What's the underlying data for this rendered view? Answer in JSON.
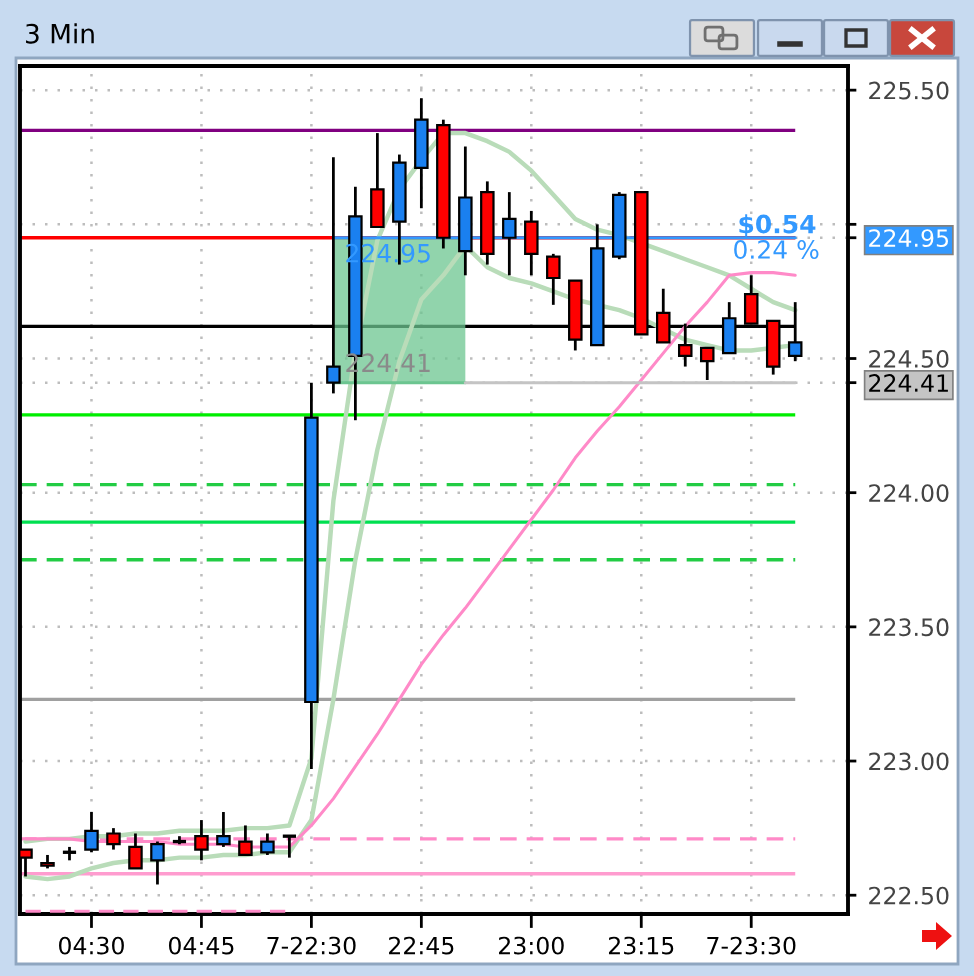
{
  "chart_data": {
    "type": "candlestick",
    "title": "3 Min",
    "categories": [
      null,
      null,
      null,
      "04:30",
      null,
      null,
      null,
      null,
      "04:45",
      null,
      null,
      null,
      null,
      "7-22:30",
      null,
      null,
      null,
      null,
      "22:45",
      null,
      null,
      null,
      null,
      "23:00",
      null,
      null,
      null,
      null,
      "23:15",
      null,
      null,
      null,
      null,
      "7-23:30",
      null,
      null
    ],
    "ohlc": [
      [
        222.67,
        222.67,
        222.57,
        222.64
      ],
      [
        222.62,
        222.65,
        222.6,
        222.61
      ],
      [
        222.66,
        222.68,
        222.63,
        222.66
      ],
      [
        222.67,
        222.81,
        222.66,
        222.74
      ],
      [
        222.73,
        222.75,
        222.67,
        222.69
      ],
      [
        222.68,
        222.73,
        222.6,
        222.6
      ],
      [
        222.63,
        222.7,
        222.54,
        222.69
      ],
      [
        222.7,
        222.72,
        222.69,
        222.7
      ],
      [
        222.72,
        222.78,
        222.63,
        222.67
      ],
      [
        222.69,
        222.81,
        222.68,
        222.72
      ],
      [
        222.7,
        222.76,
        222.65,
        222.65
      ],
      [
        222.66,
        222.73,
        222.65,
        222.7
      ],
      [
        222.72,
        222.72,
        222.64,
        222.72
      ],
      [
        223.22,
        224.41,
        222.97,
        224.28
      ],
      [
        224.41,
        225.25,
        224.37,
        224.47
      ],
      [
        224.51,
        225.14,
        224.27,
        225.03
      ],
      [
        225.13,
        225.34,
        224.99,
        224.99
      ],
      [
        225.01,
        225.26,
        224.85,
        225.23
      ],
      [
        225.21,
        225.47,
        225.06,
        225.39
      ],
      [
        225.37,
        225.39,
        224.91,
        224.95
      ],
      [
        224.9,
        225.29,
        224.81,
        225.1
      ],
      [
        225.12,
        225.16,
        224.85,
        224.89
      ],
      [
        224.95,
        225.12,
        224.81,
        225.02
      ],
      [
        225.01,
        225.05,
        224.81,
        224.89
      ],
      [
        224.88,
        224.89,
        224.7,
        224.8
      ],
      [
        224.79,
        224.79,
        224.53,
        224.57
      ],
      [
        224.55,
        225.0,
        224.55,
        224.91
      ],
      [
        224.88,
        225.12,
        224.87,
        225.11
      ],
      [
        225.12,
        225.12,
        224.59,
        224.59
      ],
      [
        224.67,
        224.76,
        224.56,
        224.56
      ],
      [
        224.55,
        224.63,
        224.47,
        224.51
      ],
      [
        224.54,
        224.54,
        224.42,
        224.49
      ],
      [
        224.52,
        224.71,
        224.52,
        224.65
      ],
      [
        224.74,
        224.81,
        224.63,
        224.63
      ],
      [
        224.64,
        224.64,
        224.44,
        224.47
      ],
      [
        224.51,
        224.71,
        224.49,
        224.56
      ]
    ],
    "colors": [
      "#ff0000",
      "#ff0000",
      "#000000",
      "#1a80f0",
      "#ff0000",
      "#ff0000",
      "#1a80f0",
      "#000000",
      "#ff0000",
      "#1a80f0",
      "#ff0000",
      "#1a80f0",
      "#000000",
      "#1a80f0",
      "#1a80f0",
      "#1a80f0",
      "#ff0000",
      "#1a80f0",
      "#1a80f0",
      "#ff0000",
      "#1a80f0",
      "#ff0000",
      "#1a80f0",
      "#ff0000",
      "#ff0000",
      "#ff0000",
      "#1a80f0",
      "#1a80f0",
      "#ff0000",
      "#ff0000",
      "#ff0000",
      "#ff0000",
      "#1a80f0",
      "#ff0000",
      "#ff0000",
      "#1a80f0"
    ],
    "series": [
      {
        "type": "line",
        "color": "#b9dcb9",
        "values": [
          222.7,
          222.71,
          222.71,
          222.72,
          222.72,
          222.73,
          222.73,
          222.74,
          222.74,
          222.74,
          222.75,
          222.75,
          222.76,
          223.01,
          223.97,
          224.53,
          224.94,
          225.13,
          225.24,
          225.34,
          225.34,
          225.31,
          225.27,
          225.2,
          225.11,
          225.02,
          224.98,
          224.96,
          224.93,
          224.9,
          224.87,
          224.84,
          224.81,
          224.76,
          224.71,
          224.68
        ]
      },
      {
        "type": "line",
        "color": "#b9dcb9",
        "values": [
          222.57,
          222.56,
          222.57,
          222.6,
          222.62,
          222.63,
          222.63,
          222.64,
          222.64,
          222.65,
          222.65,
          222.66,
          222.66,
          222.78,
          223.23,
          223.75,
          224.16,
          224.49,
          224.72,
          224.81,
          224.92,
          224.84,
          224.8,
          224.78,
          224.75,
          224.72,
          224.7,
          224.68,
          224.65,
          224.61,
          224.57,
          224.55,
          224.53,
          224.53,
          224.54,
          224.55
        ]
      },
      {
        "type": "line",
        "color": "#ff8ac8",
        "values": [
          222.71,
          222.71,
          222.71,
          222.7,
          222.7,
          222.7,
          222.7,
          222.69,
          222.69,
          222.69,
          222.68,
          222.68,
          222.68,
          222.76,
          222.86,
          222.98,
          223.1,
          223.23,
          223.36,
          223.47,
          223.57,
          223.68,
          223.79,
          223.9,
          224.01,
          224.13,
          224.23,
          224.32,
          224.42,
          224.52,
          224.62,
          224.71,
          224.81,
          224.82,
          224.82,
          224.81
        ]
      },
      {
        "type": "line",
        "color": "#ff8ac8",
        "line_style": "dashed",
        "values": [
          222.44,
          222.44,
          222.44,
          222.44,
          222.44,
          222.44,
          222.44,
          222.44,
          222.44,
          222.44,
          222.44,
          222.44,
          222.44,
          null,
          null,
          null,
          null,
          null,
          null,
          null,
          null,
          null,
          null,
          null,
          null,
          null,
          null,
          null,
          null,
          null,
          null,
          null,
          null,
          null,
          null,
          null
        ]
      },
      {
        "type": "line",
        "color": "#6cc590",
        "values": [
          null,
          null,
          null,
          null,
          null,
          null,
          null,
          null,
          null,
          null,
          null,
          null,
          null,
          null,
          224.41,
          224.41,
          224.41,
          224.41,
          224.41,
          224.41,
          224.41,
          null,
          null,
          null,
          null,
          null,
          null,
          null,
          null,
          null,
          null,
          null,
          null,
          null,
          null,
          null
        ],
        "lower": [
          null,
          null,
          null,
          null,
          null,
          null,
          null,
          null,
          null,
          null,
          null,
          null,
          null,
          null,
          224.41,
          224.41,
          224.41,
          224.41,
          224.41,
          224.41,
          224.41,
          null,
          null,
          null,
          null,
          null,
          null,
          null,
          null,
          null,
          null,
          null,
          null,
          null,
          null,
          null
        ],
        "upper": [
          null,
          null,
          null,
          null,
          null,
          null,
          null,
          null,
          null,
          null,
          null,
          null,
          null,
          null,
          224.95,
          224.95,
          224.95,
          224.95,
          224.95,
          224.95,
          224.95,
          null,
          null,
          null,
          null,
          null,
          null,
          null,
          null,
          null,
          null,
          null,
          null,
          null,
          null,
          null
        ],
        "value_labels": [
          null,
          null,
          null,
          null,
          null,
          null,
          null,
          null,
          null,
          null,
          null,
          null,
          null,
          null,
          "224.41",
          null,
          null,
          null,
          null,
          null,
          null,
          null,
          null,
          null,
          null,
          null,
          null,
          null,
          null,
          null,
          null,
          null,
          null,
          null,
          null,
          null
        ]
      },
      {
        "type": "line",
        "color": "#c4c4c4",
        "values": [
          null,
          null,
          null,
          null,
          null,
          null,
          null,
          null,
          null,
          null,
          null,
          null,
          null,
          null,
          null,
          null,
          null,
          null,
          null,
          null,
          224.41,
          224.41,
          224.41,
          224.41,
          224.41,
          224.41,
          224.41,
          224.41,
          224.41,
          224.41,
          224.41,
          224.41,
          224.41,
          224.41,
          224.41,
          224.41
        ]
      },
      {
        "type": "line",
        "color": "#3399ff",
        "values": [
          null,
          null,
          null,
          null,
          null,
          null,
          null,
          null,
          null,
          null,
          null,
          null,
          null,
          null,
          224.95,
          224.95,
          224.95,
          224.95,
          224.95,
          224.95,
          224.95,
          224.95,
          224.95,
          224.95,
          224.95,
          224.95,
          224.95,
          224.95,
          224.95,
          224.95,
          224.95,
          224.95,
          224.95,
          224.95,
          224.95,
          224.95
        ],
        "value_labels": [
          null,
          null,
          null,
          null,
          null,
          null,
          null,
          null,
          null,
          null,
          null,
          null,
          null,
          null,
          "224.95",
          null,
          null,
          null,
          null,
          null,
          null,
          null,
          null,
          null,
          null,
          null,
          null,
          null,
          null,
          null,
          null,
          null,
          null,
          null,
          null,
          null
        ]
      }
    ],
    "ref_lines": [
      {
        "axis": "y",
        "value": 225.35,
        "color": "#800080"
      },
      {
        "axis": "y",
        "value": 224.95,
        "color": "#ff0000"
      },
      {
        "axis": "y",
        "value": 224.62,
        "color": "#000000"
      },
      {
        "axis": "y",
        "value": 224.29,
        "color": "#00ee00"
      },
      {
        "axis": "y",
        "value": 224.03,
        "color": "#22cc44",
        "line_style": "dashed"
      },
      {
        "axis": "y",
        "value": 223.89,
        "color": "#00e050"
      },
      {
        "axis": "y",
        "value": 223.75,
        "color": "#22cc44",
        "line_style": "dashed"
      },
      {
        "axis": "y",
        "value": 223.23,
        "color": "#a0a0a0"
      },
      {
        "axis": "y",
        "value": 222.71,
        "color": "#ff8ac8",
        "line_style": "dashed"
      },
      {
        "axis": "y",
        "value": 222.58,
        "color": "#ff9ccf"
      }
    ],
    "annotations": [
      "$0.54",
      "0.24 %"
    ],
    "ylim": [
      222.43,
      225.59
    ],
    "yticks": [
      {
        "value": 222.5,
        "label": "222.50"
      },
      {
        "value": 223.0,
        "label": "223.00"
      },
      {
        "value": 223.5,
        "label": "223.50"
      },
      {
        "value": 224.0,
        "label": "224.00"
      },
      {
        "value": 224.41,
        "label": "224.41"
      },
      {
        "value": 224.5,
        "label": "224.50"
      },
      {
        "value": 224.95,
        "label": "224.95"
      },
      {
        "value": 225.0,
        "label": null
      },
      {
        "value": 225.5,
        "label": "225.50"
      }
    ],
    "grid": true
  }
}
